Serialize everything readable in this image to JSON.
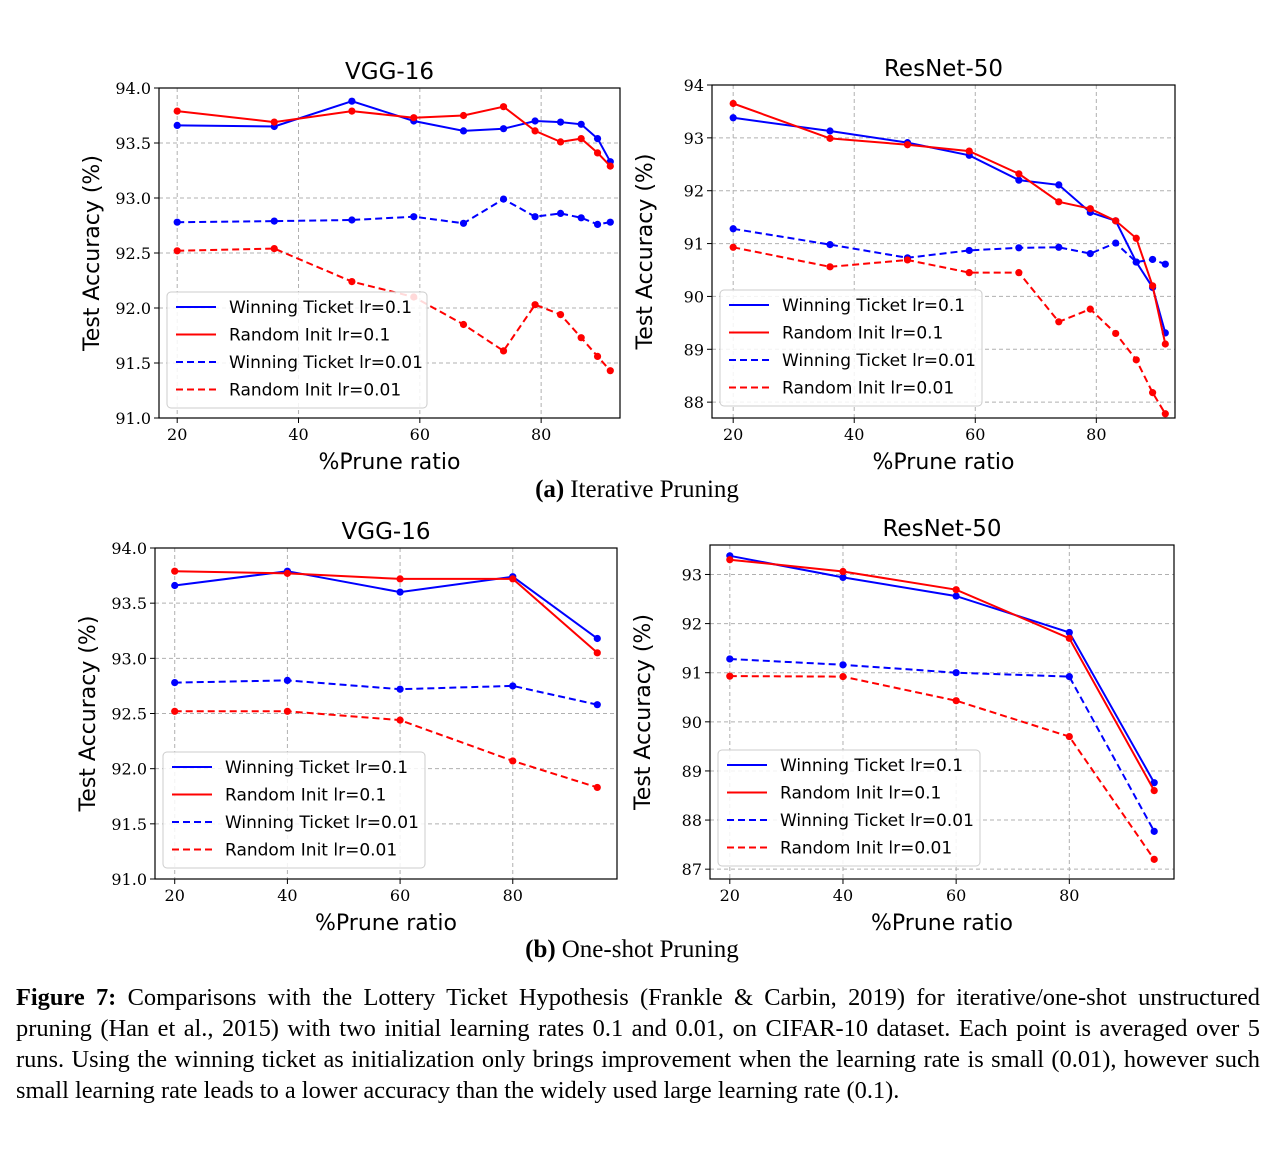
{
  "figure": {
    "subfigures": [
      {
        "label": "(a)",
        "text": "Iterative Pruning"
      },
      {
        "label": "(b)",
        "text": "One-shot Pruning"
      }
    ],
    "caption": {
      "label": "Figure 7:",
      "text": "Comparisons with the Lottery Ticket Hypothesis (Frankle & Carbin, 2019) for iterative/one-shot unstructured pruning (Han et al., 2015) with two initial learning rates 0.1 and 0.01, on CIFAR-10 dataset. Each point is averaged over 5 runs. Using the winning ticket as initialization only brings improvement when the learning rate is small (0.01), however such small learning rate leads to a lower accuracy than the widely used large learning rate (0.1)."
    }
  },
  "chart_data": [
    {
      "type": "line",
      "title": "VGG-16",
      "xlabel": "%Prune ratio",
      "ylabel": "Test Accuracy (%)",
      "xlim": [
        17,
        93
      ],
      "ylim": [
        91.0,
        94.0
      ],
      "xticks": [
        "20",
        "40",
        "60",
        "80"
      ],
      "yticks": [
        "91.0",
        "91.5",
        "92.0",
        "92.5",
        "93.0",
        "93.5",
        "94.0"
      ],
      "grid": true,
      "legend": "lower-left",
      "series": [
        {
          "name": "Winning Ticket lr=0.1",
          "color": "#0000ff",
          "dash": false,
          "x": [
            20,
            36,
            48.8,
            59,
            67.2,
            73.8,
            79,
            83.2,
            86.6,
            89.3,
            91.4
          ],
          "y": [
            93.66,
            93.65,
            93.88,
            93.7,
            93.61,
            93.63,
            93.7,
            93.69,
            93.67,
            93.54,
            93.33
          ]
        },
        {
          "name": "Random Init lr=0.1",
          "color": "#ff0000",
          "dash": false,
          "x": [
            20,
            36,
            48.8,
            59,
            67.2,
            73.8,
            79,
            83.2,
            86.6,
            89.3,
            91.4
          ],
          "y": [
            93.79,
            93.69,
            93.79,
            93.73,
            93.75,
            93.83,
            93.61,
            93.51,
            93.54,
            93.41,
            93.29
          ]
        },
        {
          "name": "Winning Ticket lr=0.01",
          "color": "#0000ff",
          "dash": true,
          "x": [
            20,
            36,
            48.8,
            59,
            67.2,
            73.8,
            79,
            83.2,
            86.6,
            89.3,
            91.4
          ],
          "y": [
            92.78,
            92.79,
            92.8,
            92.83,
            92.77,
            92.99,
            92.83,
            92.86,
            92.82,
            92.76,
            92.78
          ]
        },
        {
          "name": "Random Init lr=0.01",
          "color": "#ff0000",
          "dash": true,
          "x": [
            20,
            36,
            48.8,
            59,
            67.2,
            73.8,
            79,
            83.2,
            86.6,
            89.3,
            91.4
          ],
          "y": [
            92.52,
            92.54,
            92.24,
            92.1,
            91.85,
            91.61,
            92.03,
            91.94,
            91.73,
            91.56,
            91.43
          ]
        }
      ]
    },
    {
      "type": "line",
      "title": "ResNet-50",
      "xlabel": "%Prune ratio",
      "ylabel": "Test Accuracy (%)",
      "xlim": [
        16.5,
        93
      ],
      "ylim": [
        87.7,
        94.0
      ],
      "xticks": [
        "20",
        "40",
        "60",
        "80"
      ],
      "yticks": [
        "88",
        "89",
        "90",
        "91",
        "92",
        "93",
        "94"
      ],
      "grid": true,
      "legend": "lower-left",
      "series": [
        {
          "name": "Winning Ticket lr=0.1",
          "color": "#0000ff",
          "dash": false,
          "x": [
            20,
            36,
            48.8,
            59,
            67.2,
            73.8,
            79,
            83.2,
            86.6,
            89.3,
            91.4
          ],
          "y": [
            93.38,
            93.13,
            92.91,
            92.67,
            92.2,
            92.11,
            91.59,
            91.43,
            90.65,
            90.17,
            89.31
          ]
        },
        {
          "name": "Random Init lr=0.1",
          "color": "#ff0000",
          "dash": false,
          "x": [
            20,
            36,
            48.8,
            59,
            67.2,
            73.8,
            79,
            83.2,
            86.6,
            89.3,
            91.4
          ],
          "y": [
            93.65,
            92.99,
            92.87,
            92.75,
            92.32,
            91.79,
            91.66,
            91.43,
            91.1,
            90.2,
            89.1
          ]
        },
        {
          "name": "Winning Ticket lr=0.01",
          "color": "#0000ff",
          "dash": true,
          "x": [
            20,
            36,
            48.8,
            59,
            67.2,
            73.8,
            79,
            83.2,
            86.6,
            89.3,
            91.4
          ],
          "y": [
            91.28,
            90.98,
            90.73,
            90.87,
            90.92,
            90.93,
            90.81,
            91.01,
            90.65,
            90.7,
            90.61
          ]
        },
        {
          "name": "Random Init lr=0.01",
          "color": "#ff0000",
          "dash": true,
          "x": [
            20,
            36,
            48.8,
            59,
            67.2,
            73.8,
            79,
            83.2,
            86.6,
            89.3,
            91.4
          ],
          "y": [
            90.93,
            90.56,
            90.69,
            90.45,
            90.45,
            89.52,
            89.76,
            89.3,
            88.8,
            88.18,
            87.78
          ]
        }
      ]
    },
    {
      "type": "line",
      "title": "VGG-16",
      "xlabel": "%Prune ratio",
      "ylabel": "Test Accuracy (%)",
      "xlim": [
        16.5,
        98.5
      ],
      "ylim": [
        91.0,
        94.0
      ],
      "xticks": [
        "20",
        "40",
        "60",
        "80"
      ],
      "yticks": [
        "91.0",
        "91.5",
        "92.0",
        "92.5",
        "93.0",
        "93.5",
        "94.0"
      ],
      "grid": true,
      "legend": "lower-left",
      "series": [
        {
          "name": "Winning Ticket lr=0.1",
          "color": "#0000ff",
          "dash": false,
          "x": [
            20,
            40,
            60,
            80,
            95
          ],
          "y": [
            93.66,
            93.79,
            93.6,
            93.74,
            93.18
          ]
        },
        {
          "name": "Random Init lr=0.1",
          "color": "#ff0000",
          "dash": false,
          "x": [
            20,
            40,
            60,
            80,
            95
          ],
          "y": [
            93.79,
            93.77,
            93.72,
            93.72,
            93.05
          ]
        },
        {
          "name": "Winning Ticket lr=0.01",
          "color": "#0000ff",
          "dash": true,
          "x": [
            20,
            40,
            60,
            80,
            95
          ],
          "y": [
            92.78,
            92.8,
            92.72,
            92.75,
            92.58
          ]
        },
        {
          "name": "Random Init lr=0.01",
          "color": "#ff0000",
          "dash": true,
          "x": [
            20,
            40,
            60,
            80,
            95
          ],
          "y": [
            92.52,
            92.52,
            92.44,
            92.07,
            91.83
          ]
        }
      ]
    },
    {
      "type": "line",
      "title": "ResNet-50",
      "xlabel": "%Prune ratio",
      "ylabel": "Test Accuracy (%)",
      "xlim": [
        16.5,
        98.5
      ],
      "ylim": [
        86.8,
        93.6
      ],
      "xticks": [
        "20",
        "40",
        "60",
        "80"
      ],
      "yticks": [
        "87",
        "88",
        "89",
        "90",
        "91",
        "92",
        "93"
      ],
      "grid": true,
      "legend": "lower-left",
      "series": [
        {
          "name": "Winning Ticket lr=0.1",
          "color": "#0000ff",
          "dash": false,
          "x": [
            20,
            40,
            60,
            80,
            95
          ],
          "y": [
            93.38,
            92.94,
            92.56,
            91.82,
            88.76
          ]
        },
        {
          "name": "Random Init lr=0.1",
          "color": "#ff0000",
          "dash": false,
          "x": [
            20,
            40,
            60,
            80,
            95
          ],
          "y": [
            93.3,
            93.06,
            92.69,
            91.7,
            88.6
          ]
        },
        {
          "name": "Winning Ticket lr=0.01",
          "color": "#0000ff",
          "dash": true,
          "x": [
            20,
            40,
            60,
            80,
            95
          ],
          "y": [
            91.28,
            91.16,
            91.0,
            90.92,
            87.77
          ]
        },
        {
          "name": "Random Init lr=0.01",
          "color": "#ff0000",
          "dash": true,
          "x": [
            20,
            40,
            60,
            80,
            95
          ],
          "y": [
            90.93,
            90.92,
            90.43,
            89.7,
            87.2
          ]
        }
      ]
    }
  ]
}
